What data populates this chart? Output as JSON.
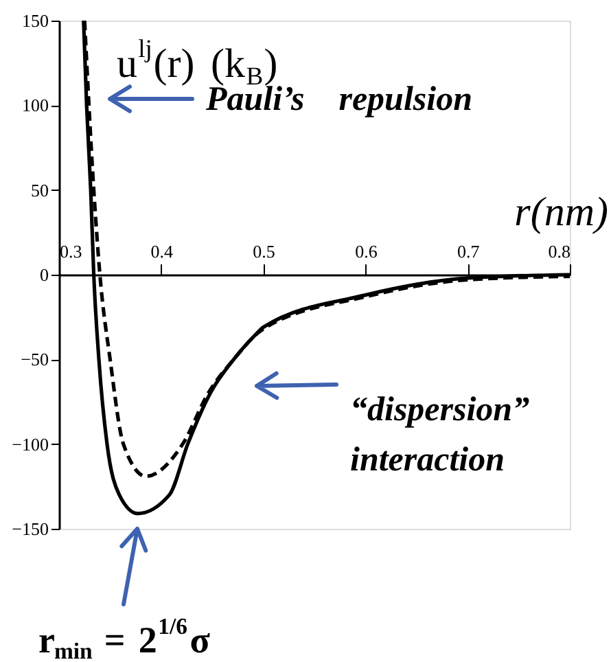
{
  "chart_data": {
    "type": "line",
    "ylabel": "u$^{lj}$(r) (k$_{B}$)",
    "xlabel": "r(nm)",
    "series": [
      {
        "color": "#000000",
        "line_style": "solid",
        "x": [
          0.324,
          0.327,
          0.331,
          0.334,
          0.339,
          0.347,
          0.359,
          0.377,
          0.408,
          0.426,
          0.448,
          0.471,
          0.493,
          0.5,
          0.6,
          0.7,
          0.8
        ],
        "values": [
          150,
          100,
          50,
          0,
          -50,
          -100,
          -130,
          -141,
          -130,
          -100,
          -70,
          -50,
          -35,
          -31,
          -12,
          -2,
          0
        ]
      },
      {
        "color": "#000000",
        "line_style": "dashed",
        "x": [
          0.325,
          0.334,
          0.34,
          0.35,
          0.363,
          0.385,
          0.421,
          0.446,
          0.471,
          0.5,
          0.6,
          0.7,
          0.8
        ],
        "values": [
          150,
          50,
          0,
          -50,
          -100,
          -119,
          -100,
          -70,
          -50,
          -32,
          -13,
          -3,
          -1
        ]
      }
    ],
    "xlim": [
      0.3,
      0.8
    ],
    "xticks": [
      0.3,
      0.4,
      0.5,
      0.6,
      0.7,
      0.8
    ],
    "ylim": [
      -150,
      150
    ],
    "yticks": [
      -150,
      -100,
      -50,
      0,
      50,
      100,
      150
    ],
    "grid": false,
    "annotations": [
      "Pauli’s repulsion",
      "“dispersion”\ninteraction",
      "r$_{min}$ = 2$^{1/6}$σ"
    ]
  }
}
